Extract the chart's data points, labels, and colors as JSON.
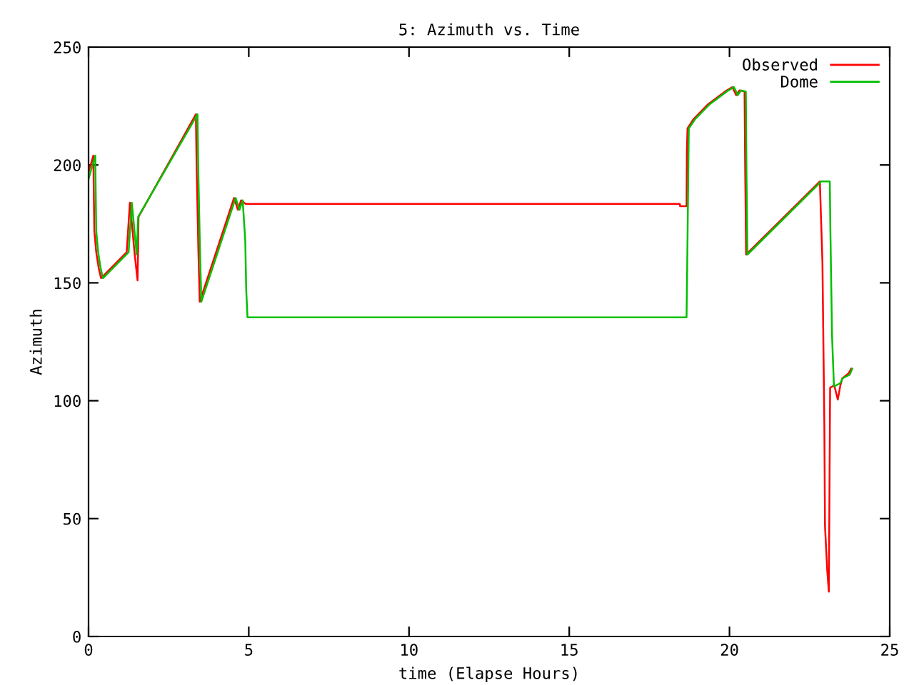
{
  "chart_data": {
    "type": "line",
    "title": "5: Azimuth vs. Time",
    "xlabel": "time (Elapse Hours)",
    "ylabel": "Azimuth",
    "xlim": [
      0,
      25
    ],
    "ylim": [
      0,
      250
    ],
    "xticks": [
      0,
      5,
      10,
      15,
      20,
      25
    ],
    "yticks": [
      0,
      50,
      100,
      150,
      200,
      250
    ],
    "grid": false,
    "legend": "top right",
    "line_style": "solid",
    "marker": "none",
    "series": [
      {
        "name": "Observed",
        "color": "#ff0000",
        "x": [
          0,
          0.15,
          0.16,
          0.18,
          0.24,
          0.32,
          0.39,
          1.19,
          1.29,
          1.36,
          1.44,
          1.53,
          1.56,
          3.35,
          3.37,
          3.43,
          3.47,
          4.54,
          4.66,
          4.76,
          4.9,
          18.45,
          18.46,
          18.66,
          18.67,
          18.69,
          18.88,
          19.32,
          19.91,
          20.09,
          20.21,
          20.31,
          20.47,
          20.49,
          20.52,
          22.82,
          22.9,
          22.96,
          22.98,
          23.05,
          23.1,
          23.12,
          23.14,
          23.27,
          23.38,
          23.46,
          23.52,
          23.71,
          23.8
        ],
        "values": [
          197,
          204,
          192,
          172,
          163,
          156,
          152,
          163,
          184,
          174,
          162,
          151,
          178,
          221.5,
          201,
          162,
          142,
          186,
          181,
          185,
          183.5,
          183.5,
          182.5,
          182.5,
          206,
          215.5,
          219.5,
          225.6,
          231.6,
          233,
          229.6,
          231.6,
          231.2,
          197,
          162,
          193,
          159,
          90,
          47,
          28,
          19,
          61,
          105.5,
          106.5,
          100.5,
          106.5,
          109.5,
          111.5,
          113.6
        ]
      },
      {
        "name": "Dome",
        "color": "#00c000",
        "x": [
          0,
          0.21,
          0.22,
          0.24,
          0.3,
          0.38,
          0.45,
          1.25,
          1.35,
          1.42,
          1.5,
          1.55,
          3.4,
          3.42,
          3.48,
          3.52,
          4.59,
          4.71,
          4.81,
          4.89,
          4.92,
          4.96,
          18.66,
          18.68,
          18.73,
          18.93,
          19.37,
          19.96,
          20.14,
          20.26,
          20.36,
          20.51,
          20.53,
          20.56,
          22.86,
          23.13,
          23.15,
          23.2,
          23.26,
          23.46,
          23.53,
          23.75,
          23.83
        ],
        "values": [
          194,
          204,
          192,
          172,
          163,
          156,
          152,
          163,
          184,
          174,
          162,
          178,
          221.5,
          201,
          162,
          142,
          186,
          181,
          185,
          168,
          147,
          135.4,
          135.4,
          156,
          215.5,
          219.5,
          225.6,
          231.6,
          233,
          229.6,
          231.6,
          231.2,
          197,
          162,
          193,
          193,
          171,
          127.7,
          106,
          107.5,
          109.5,
          111,
          113.6
        ]
      }
    ]
  }
}
